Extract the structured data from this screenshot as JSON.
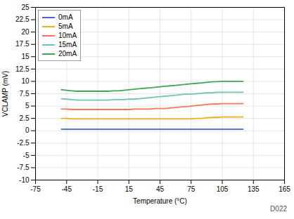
{
  "chart_data": {
    "type": "line",
    "xlabel": "Temperature (°C)",
    "ylabel": "VCLAMP (mV)",
    "x": [
      -50,
      -45,
      -40,
      -35,
      -30,
      -25,
      -20,
      -15,
      -10,
      -5,
      0,
      5,
      10,
      15,
      20,
      25,
      30,
      35,
      40,
      45,
      50,
      55,
      60,
      65,
      70,
      75,
      80,
      85,
      90,
      95,
      100,
      105,
      110,
      115,
      120,
      125
    ],
    "series": [
      {
        "name": "0mA",
        "values": [
          0.3,
          0.3,
          0.3,
          0.3,
          0.3,
          0.3,
          0.3,
          0.3,
          0.3,
          0.3,
          0.3,
          0.3,
          0.3,
          0.3,
          0.3,
          0.3,
          0.3,
          0.3,
          0.3,
          0.3,
          0.3,
          0.3,
          0.3,
          0.3,
          0.3,
          0.3,
          0.3,
          0.3,
          0.3,
          0.3,
          0.3,
          0.3,
          0.3,
          0.3,
          0.3,
          0.3
        ]
      },
      {
        "name": "5mA",
        "values": [
          2.5,
          2.5,
          2.4,
          2.4,
          2.4,
          2.4,
          2.4,
          2.4,
          2.4,
          2.4,
          2.4,
          2.4,
          2.4,
          2.4,
          2.4,
          2.4,
          2.4,
          2.4,
          2.4,
          2.4,
          2.4,
          2.4,
          2.4,
          2.4,
          2.4,
          2.4,
          2.5,
          2.5,
          2.6,
          2.7,
          2.7,
          2.8,
          2.8,
          2.8,
          2.8,
          2.8
        ]
      },
      {
        "name": "10mA",
        "values": [
          4.4,
          4.4,
          4.3,
          4.3,
          4.3,
          4.3,
          4.3,
          4.3,
          4.3,
          4.3,
          4.3,
          4.3,
          4.3,
          4.3,
          4.4,
          4.4,
          4.4,
          4.4,
          4.5,
          4.5,
          4.5,
          4.6,
          4.7,
          4.8,
          4.9,
          5.0,
          5.1,
          5.2,
          5.3,
          5.4,
          5.4,
          5.5,
          5.5,
          5.5,
          5.5,
          5.5
        ]
      },
      {
        "name": "15mA",
        "values": [
          6.5,
          6.4,
          6.3,
          6.2,
          6.2,
          6.2,
          6.2,
          6.2,
          6.2,
          6.2,
          6.3,
          6.3,
          6.3,
          6.4,
          6.4,
          6.5,
          6.6,
          6.7,
          6.8,
          6.9,
          7.0,
          7.1,
          7.2,
          7.3,
          7.4,
          7.4,
          7.5,
          7.6,
          7.7,
          7.7,
          7.8,
          7.8,
          7.8,
          7.8,
          7.8,
          7.8
        ]
      },
      {
        "name": "20mA",
        "values": [
          8.3,
          8.2,
          8.1,
          8.0,
          8.0,
          8.0,
          8.0,
          8.0,
          8.0,
          8.0,
          8.1,
          8.1,
          8.2,
          8.3,
          8.4,
          8.5,
          8.6,
          8.7,
          8.8,
          8.9,
          9.0,
          9.1,
          9.2,
          9.3,
          9.4,
          9.5,
          9.6,
          9.7,
          9.8,
          9.9,
          9.95,
          10.0,
          10.0,
          10.0,
          10.0,
          10.0
        ]
      }
    ],
    "xlim": [
      -75,
      165
    ],
    "ylim": [
      -10,
      25
    ],
    "xticks": [
      -75,
      -45,
      -15,
      15,
      45,
      75,
      105,
      135,
      165
    ],
    "yticks": [
      -10,
      -7.5,
      -5,
      -2.5,
      0,
      2.5,
      5,
      7.5,
      10,
      12.5,
      15,
      17.5,
      20,
      22.5,
      25
    ],
    "grid": true,
    "legend": "upper left",
    "annotation": "D022"
  }
}
